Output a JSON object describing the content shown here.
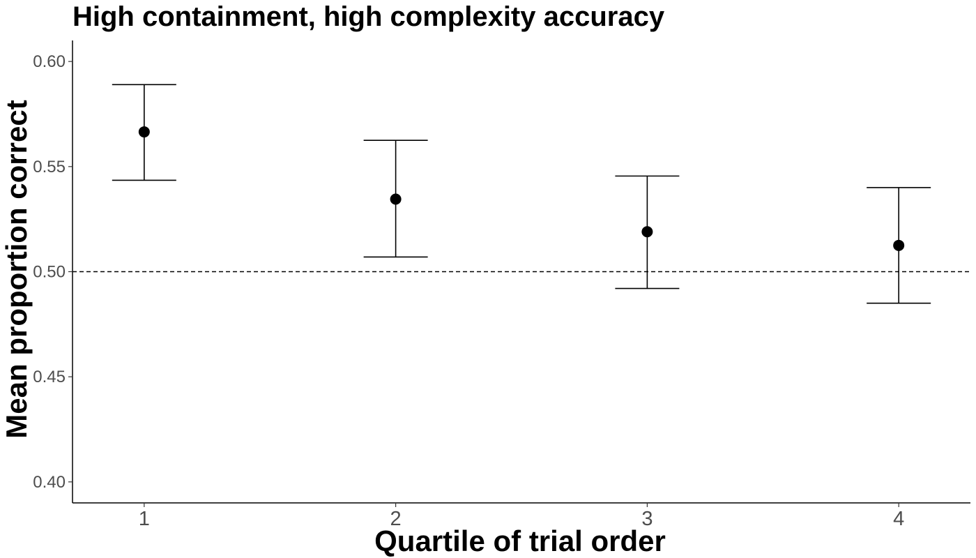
{
  "chart_data": {
    "type": "scatter",
    "title": "High containment, high complexity accuracy",
    "xlabel": "Quartile of trial order",
    "ylabel": "Mean proportion correct",
    "categories": [
      "1",
      "2",
      "3",
      "4"
    ],
    "series": [
      {
        "values": [
          0.5665,
          0.5345,
          0.519,
          0.5125
        ],
        "error_lower": [
          0.5435,
          0.507,
          0.492,
          0.485
        ],
        "error_upper": [
          0.589,
          0.5625,
          0.5455,
          0.54
        ]
      }
    ],
    "ylim": [
      0.39,
      0.61
    ],
    "yticks": [
      "0.40",
      "0.45",
      "0.50",
      "0.55",
      "0.60"
    ],
    "reference_line": {
      "y": 0.5,
      "style": "dashed"
    },
    "grid": false,
    "legend": "none",
    "colors": {
      "points": "#000000",
      "error_bars": "#000000",
      "tick_labels": "#4d4d4d"
    }
  }
}
